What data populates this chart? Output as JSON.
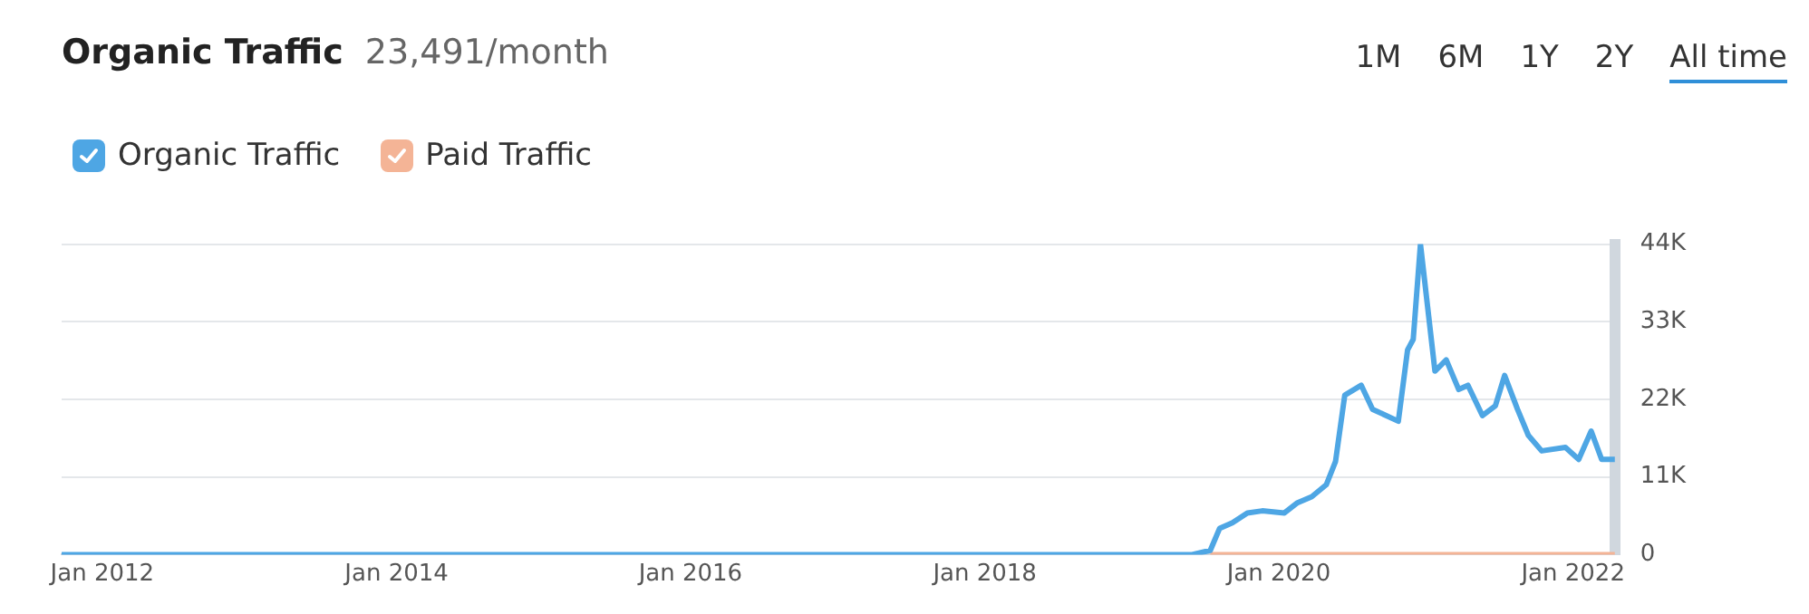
{
  "chart_data": {
    "type": "line",
    "title": "Organic Traffic",
    "subtitle": "23,491/month",
    "annotations": [
      "1M",
      "6M",
      "1Y",
      "2Y",
      "All time"
    ],
    "legend": "top left",
    "grid": "y",
    "marker": "none",
    "line_style": "solid",
    "xlim": [
      "2011-09-22",
      "2022-04-15"
    ],
    "xticks": [
      {
        "value": "2012-01",
        "label": "Jan 2012"
      },
      {
        "value": "2014-01",
        "label": "Jan 2014"
      },
      {
        "value": "2016-01",
        "label": "Jan 2016"
      },
      {
        "value": "2018-01",
        "label": "Jan 2018"
      },
      {
        "value": "2020-01",
        "label": "Jan 2020"
      },
      {
        "value": "2022-01",
        "label": "Jan 2022"
      }
    ],
    "ylim": [
      0,
      44000
    ],
    "yticks": [
      0,
      {
        "value": 11000,
        "label": "11K"
      },
      {
        "value": 22000,
        "label": "22K"
      },
      {
        "value": 33000,
        "label": "33K"
      },
      {
        "value": 44000,
        "label": "44K"
      }
    ],
    "series": [
      {
        "name": "Organic Traffic",
        "color": "#4ea6e4",
        "x": [
          "2011-09-22",
          "2019-05-31",
          "2019-07-15",
          "2019-08-07",
          "2019-09-08",
          "2019-10-15",
          "2019-11-21",
          "2020-01-15",
          "2020-02-15",
          "2020-03-23",
          "2020-04-28",
          "2020-05-21",
          "2020-06-13",
          "2020-07-24",
          "2020-08-21",
          "2020-10-24",
          "2020-11-16",
          "2020-11-30",
          "2020-12-18",
          "2021-01-23",
          "2021-02-20",
          "2021-03-23",
          "2021-04-15",
          "2021-05-21",
          "2021-06-22",
          "2021-07-15",
          "2021-08-16",
          "2021-09-12",
          "2021-10-15",
          "2021-12-13",
          "2022-01-15",
          "2022-02-15",
          "2022-03-13",
          "2022-04-15"
        ],
        "values": [
          0,
          0,
          600,
          3700,
          4500,
          5900,
          6200,
          5900,
          7300,
          8200,
          9900,
          13200,
          22600,
          24000,
          20600,
          18900,
          29000,
          30500,
          44000,
          26000,
          27600,
          23400,
          24000,
          19700,
          21100,
          25400,
          20600,
          16900,
          14700,
          15200,
          13500,
          17500,
          13500,
          13500
        ]
      },
      {
        "name": "Paid Traffic",
        "color": "#f4b496",
        "x": [
          "2019-07-15",
          "2022-04-15"
        ],
        "values": [
          0,
          0
        ]
      }
    ]
  }
}
